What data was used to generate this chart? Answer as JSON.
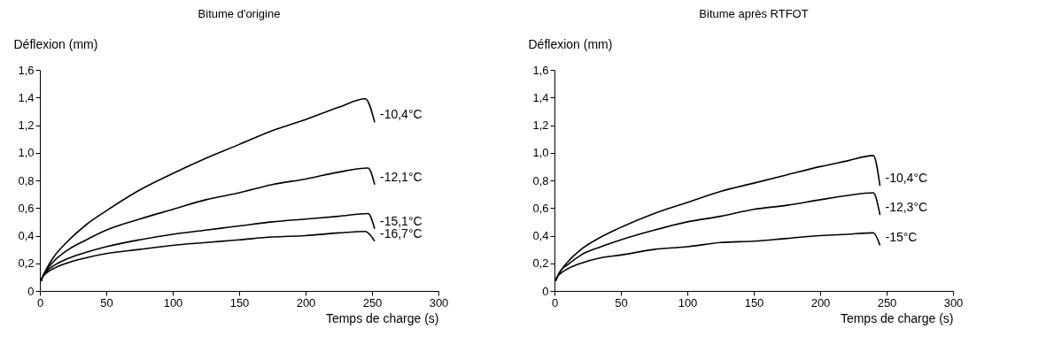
{
  "chart_data": [
    {
      "type": "line",
      "title": "Bitume d'origine",
      "xlabel": "Temps de charge (s)",
      "ylabel": "Déflexion (mm)",
      "xlim": [
        0,
        300
      ],
      "xticks": [
        0,
        50,
        100,
        150,
        200,
        250,
        300
      ],
      "ylim": [
        0,
        1.6
      ],
      "yticks": [
        0,
        {
          "value": 0.2,
          "label": "0,2"
        },
        {
          "value": 0.4,
          "label": "0,4"
        },
        {
          "value": 0.6,
          "label": "0,6"
        },
        {
          "value": 0.8,
          "label": "0,8"
        },
        {
          "value": 1.0,
          "label": "1,0"
        },
        {
          "value": 1.2,
          "label": "1,2"
        },
        {
          "value": 1.4,
          "label": "1,4"
        },
        {
          "value": 1.6,
          "label": "1,6"
        }
      ],
      "grid": false,
      "legend": false,
      "marker": "none",
      "line_style": "solid",
      "series": [
        {
          "name": "-10,4°C",
          "color": "#000000",
          "x": [
            1,
            2,
            5,
            10,
            20,
            35,
            50,
            75,
            100,
            125,
            150,
            175,
            200,
            225,
            245,
            252
          ],
          "values": [
            0.07,
            0.1,
            0.16,
            0.24,
            0.35,
            0.48,
            0.58,
            0.73,
            0.85,
            0.96,
            1.06,
            1.16,
            1.24,
            1.33,
            1.39,
            1.22
          ]
        },
        {
          "name": "-12,1°C",
          "color": "#000000",
          "x": [
            1,
            2,
            5,
            10,
            20,
            35,
            50,
            75,
            100,
            125,
            150,
            175,
            200,
            225,
            247,
            252
          ],
          "values": [
            0.07,
            0.1,
            0.15,
            0.21,
            0.29,
            0.37,
            0.44,
            0.52,
            0.59,
            0.66,
            0.71,
            0.77,
            0.81,
            0.86,
            0.89,
            0.77
          ]
        },
        {
          "name": "-15,1°C",
          "color": "#000000",
          "x": [
            1,
            2,
            5,
            10,
            20,
            35,
            50,
            75,
            100,
            125,
            150,
            175,
            200,
            225,
            247,
            252
          ],
          "values": [
            0.08,
            0.1,
            0.14,
            0.18,
            0.23,
            0.28,
            0.32,
            0.37,
            0.41,
            0.44,
            0.47,
            0.5,
            0.52,
            0.54,
            0.56,
            0.45
          ]
        },
        {
          "name": "-16,7°C",
          "color": "#000000",
          "x": [
            1,
            2,
            5,
            10,
            20,
            35,
            50,
            75,
            100,
            125,
            150,
            175,
            200,
            225,
            245,
            252
          ],
          "values": [
            0.08,
            0.1,
            0.13,
            0.16,
            0.2,
            0.24,
            0.27,
            0.3,
            0.33,
            0.35,
            0.37,
            0.39,
            0.4,
            0.42,
            0.43,
            0.36
          ]
        }
      ]
    },
    {
      "type": "line",
      "title": "Bitume après RTFOT",
      "xlabel": "Temps de charge (s)",
      "ylabel": "Déflexion (mm)",
      "xlim": [
        0,
        300
      ],
      "xticks": [
        0,
        50,
        100,
        150,
        200,
        250,
        300
      ],
      "ylim": [
        0,
        1.6
      ],
      "yticks": [
        0,
        {
          "value": 0.2,
          "label": "0,2"
        },
        {
          "value": 0.4,
          "label": "0,4"
        },
        {
          "value": 0.6,
          "label": "0,6"
        },
        {
          "value": 0.8,
          "label": "0,8"
        },
        {
          "value": 1.0,
          "label": "1,0"
        },
        {
          "value": 1.2,
          "label": "1,2"
        },
        {
          "value": 1.4,
          "label": "1,4"
        },
        {
          "value": 1.6,
          "label": "1,6"
        }
      ],
      "grid": false,
      "legend": false,
      "marker": "none",
      "line_style": "solid",
      "series": [
        {
          "name": "-10,4°C",
          "color": "#000000",
          "x": [
            1,
            2,
            5,
            10,
            20,
            35,
            50,
            75,
            100,
            125,
            150,
            175,
            200,
            220,
            240,
            245
          ],
          "values": [
            0.07,
            0.1,
            0.15,
            0.21,
            0.3,
            0.39,
            0.46,
            0.56,
            0.64,
            0.72,
            0.78,
            0.84,
            0.9,
            0.94,
            0.98,
            0.76
          ]
        },
        {
          "name": "-12,3°C",
          "color": "#000000",
          "x": [
            1,
            2,
            5,
            10,
            20,
            35,
            50,
            75,
            100,
            125,
            150,
            175,
            200,
            220,
            240,
            245
          ],
          "values": [
            0.08,
            0.1,
            0.15,
            0.19,
            0.26,
            0.32,
            0.37,
            0.44,
            0.5,
            0.54,
            0.59,
            0.62,
            0.66,
            0.69,
            0.71,
            0.55
          ]
        },
        {
          "name": "-15°C",
          "color": "#000000",
          "x": [
            1,
            2,
            5,
            10,
            20,
            35,
            50,
            75,
            100,
            125,
            150,
            175,
            200,
            220,
            240,
            245
          ],
          "values": [
            0.08,
            0.1,
            0.13,
            0.16,
            0.2,
            0.24,
            0.26,
            0.3,
            0.32,
            0.35,
            0.36,
            0.38,
            0.4,
            0.41,
            0.42,
            0.33
          ]
        }
      ]
    }
  ]
}
